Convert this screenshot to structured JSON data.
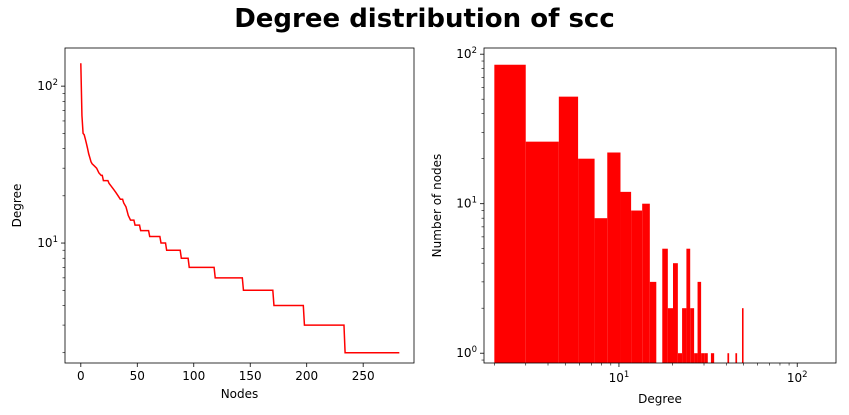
{
  "figure_title": "Degree distribution of scc",
  "colors": {
    "series": "#ff0000",
    "axis": "#000000"
  },
  "chart_data": [
    {
      "type": "line",
      "title": "",
      "xlabel": "Nodes",
      "ylabel": "Degree",
      "yscale": "log",
      "xlim": [
        -14,
        295
      ],
      "ylim": [
        1.72,
        175
      ],
      "xticks": [
        0,
        50,
        100,
        150,
        200,
        250
      ],
      "yticks": [
        {
          "value": 10,
          "base": "10",
          "exp": "1"
        },
        {
          "value": 100,
          "base": "10",
          "exp": "2"
        }
      ],
      "grid": false,
      "series": [
        {
          "color": "#ff0000",
          "points": [
            [
              0,
              140
            ],
            [
              1,
              65
            ],
            [
              2,
              50
            ],
            [
              3,
              49
            ],
            [
              4,
              46
            ],
            [
              5,
              43
            ],
            [
              6,
              40
            ],
            [
              7,
              37
            ],
            [
              8,
              35
            ],
            [
              9,
              33
            ],
            [
              10,
              32
            ],
            [
              12,
              31
            ],
            [
              14,
              30
            ],
            [
              16,
              28
            ],
            [
              18,
              27
            ],
            [
              19,
              27
            ],
            [
              20,
              25
            ],
            [
              24,
              25
            ],
            [
              25,
              24
            ],
            [
              27,
              23
            ],
            [
              29,
              22
            ],
            [
              31,
              21
            ],
            [
              33,
              20
            ],
            [
              35,
              19
            ],
            [
              37,
              19
            ],
            [
              38,
              18
            ],
            [
              40,
              17
            ],
            [
              41,
              16
            ],
            [
              42,
              15
            ],
            [
              44,
              14
            ],
            [
              47,
              14
            ],
            [
              48,
              13
            ],
            [
              52,
              13
            ],
            [
              53,
              12
            ],
            [
              60,
              12
            ],
            [
              61,
              11
            ],
            [
              70,
              11
            ],
            [
              71,
              10
            ],
            [
              75,
              10
            ],
            [
              76,
              9
            ],
            [
              88,
              9
            ],
            [
              89,
              8
            ],
            [
              95,
              8
            ],
            [
              96,
              7
            ],
            [
              118,
              7
            ],
            [
              119,
              6
            ],
            [
              143,
              6
            ],
            [
              144,
              5
            ],
            [
              170,
              5
            ],
            [
              171,
              4
            ],
            [
              197,
              4
            ],
            [
              198,
              3
            ],
            [
              233,
              3
            ],
            [
              234,
              2
            ],
            [
              282,
              2
            ]
          ]
        }
      ]
    },
    {
      "type": "bar",
      "title": "",
      "xlabel": "Degree",
      "ylabel": "Number of nodes",
      "xscale": "log",
      "yscale": "log",
      "xlim": [
        1.75,
        165
      ],
      "ylim": [
        0.86,
        110
      ],
      "xticks": [
        {
          "value": 10,
          "base": "10",
          "exp": "1"
        },
        {
          "value": 100,
          "base": "10",
          "exp": "2"
        }
      ],
      "yticks": [
        {
          "value": 1,
          "base": "10",
          "exp": "0"
        },
        {
          "value": 10,
          "base": "10",
          "exp": "1"
        },
        {
          "value": 100,
          "base": "10",
          "exp": "2"
        }
      ],
      "grid": false,
      "bars": [
        {
          "x0": 2.0,
          "x1": 3.0,
          "value": 85
        },
        {
          "x0": 3.0,
          "x1": 4.6,
          "value": 26
        },
        {
          "x0": 4.6,
          "x1": 5.9,
          "value": 52
        },
        {
          "x0": 5.9,
          "x1": 7.3,
          "value": 20
        },
        {
          "x0": 7.3,
          "x1": 8.6,
          "value": 8
        },
        {
          "x0": 8.6,
          "x1": 10.2,
          "value": 22
        },
        {
          "x0": 10.2,
          "x1": 11.7,
          "value": 12
        },
        {
          "x0": 11.7,
          "x1": 13.5,
          "value": 9
        },
        {
          "x0": 13.5,
          "x1": 14.9,
          "value": 10
        },
        {
          "x0": 14.9,
          "x1": 16.2,
          "value": 3
        },
        {
          "x0": 17.5,
          "x1": 18.8,
          "value": 5
        },
        {
          "x0": 18.8,
          "x1": 20.1,
          "value": 2
        },
        {
          "x0": 20.1,
          "x1": 21.4,
          "value": 4
        },
        {
          "x0": 21.4,
          "x1": 22.6,
          "value": 1
        },
        {
          "x0": 22.6,
          "x1": 23.9,
          "value": 2
        },
        {
          "x0": 23.9,
          "x1": 25.1,
          "value": 5
        },
        {
          "x0": 25.1,
          "x1": 26.4,
          "value": 2
        },
        {
          "x0": 26.4,
          "x1": 27.6,
          "value": 1
        },
        {
          "x0": 27.6,
          "x1": 28.9,
          "value": 3
        },
        {
          "x0": 28.9,
          "x1": 30.1,
          "value": 1
        },
        {
          "x0": 30.1,
          "x1": 31.5,
          "value": 1
        },
        {
          "x0": 32.8,
          "x1": 34.2,
          "value": 1
        },
        {
          "x0": 40.6,
          "x1": 41.5,
          "value": 1
        },
        {
          "x0": 45.0,
          "x1": 46.0,
          "value": 1
        },
        {
          "x0": 49.0,
          "x1": 50.0,
          "value": 2
        }
      ]
    }
  ]
}
